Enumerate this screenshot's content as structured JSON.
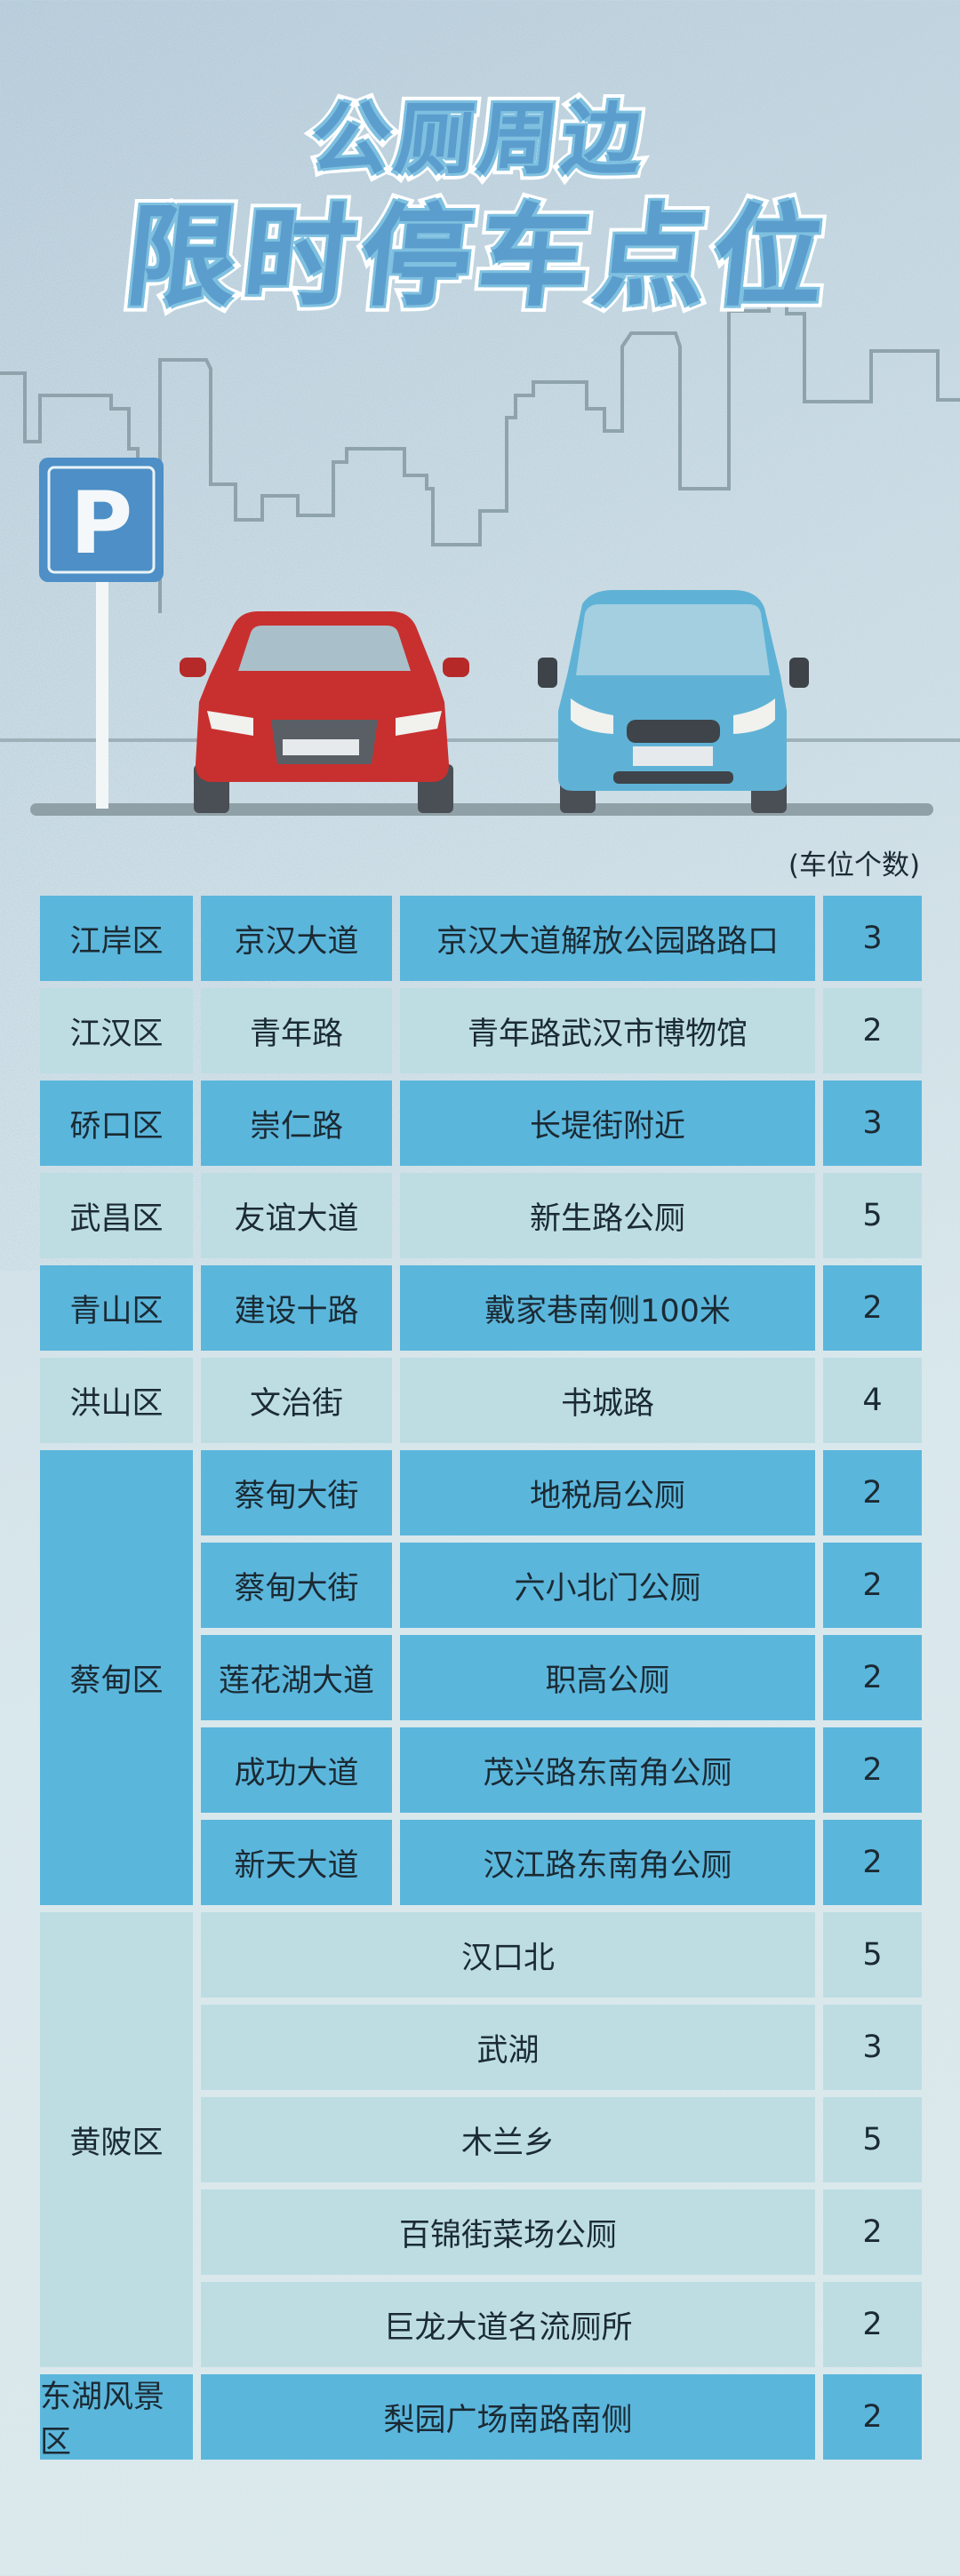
{
  "title": {
    "line1": "公厕周边",
    "line2": "限时停车点位"
  },
  "parking_sign": {
    "letter": "P"
  },
  "unit_note": "(车位个数)",
  "colors": {
    "dark_row": "#5bb6dc",
    "light_row": "#bddde3",
    "title": "#5b9dcc",
    "red_car": "#c8302f",
    "blue_car": "#5fb2d6"
  },
  "table": {
    "groups": [
      {
        "district": "江岸区",
        "shade": "dark",
        "entries": [
          {
            "road": "京汉大道",
            "location": "京汉大道解放公园路路口",
            "count": "3"
          }
        ]
      },
      {
        "district": "江汉区",
        "shade": "light",
        "entries": [
          {
            "road": "青年路",
            "location": "青年路武汉市博物馆",
            "count": "2"
          }
        ]
      },
      {
        "district": "硚口区",
        "shade": "dark",
        "entries": [
          {
            "road": "崇仁路",
            "location": "长堤街附近",
            "count": "3"
          }
        ]
      },
      {
        "district": "武昌区",
        "shade": "light",
        "entries": [
          {
            "road": "友谊大道",
            "location": "新生路公厕",
            "count": "5"
          }
        ]
      },
      {
        "district": "青山区",
        "shade": "dark",
        "entries": [
          {
            "road": "建设十路",
            "location": "戴家巷南侧100米",
            "count": "2"
          }
        ]
      },
      {
        "district": "洪山区",
        "shade": "light",
        "entries": [
          {
            "road": "文治街",
            "location": "书城路",
            "count": "4"
          }
        ]
      },
      {
        "district": "蔡甸区",
        "shade": "dark",
        "entries": [
          {
            "road": "蔡甸大街",
            "location": "地税局公厕",
            "count": "2"
          },
          {
            "road": "蔡甸大街",
            "location": "六小北门公厕",
            "count": "2"
          },
          {
            "road": "莲花湖大道",
            "location": "职高公厕",
            "count": "2"
          },
          {
            "road": "成功大道",
            "location": "茂兴路东南角公厕",
            "count": "2"
          },
          {
            "road": "新天大道",
            "location": "汉江路东南角公厕",
            "count": "2"
          }
        ]
      },
      {
        "district": "黄陂区",
        "shade": "light",
        "entries": [
          {
            "road": null,
            "location": "汉口北",
            "count": "5"
          },
          {
            "road": null,
            "location": "武湖",
            "count": "3"
          },
          {
            "road": null,
            "location": "木兰乡",
            "count": "5"
          },
          {
            "road": null,
            "location": "百锦街菜场公厕",
            "count": "2"
          },
          {
            "road": null,
            "location": "巨龙大道名流厕所",
            "count": "2"
          }
        ]
      },
      {
        "district": "东湖风景区",
        "shade": "dark",
        "entries": [
          {
            "road": null,
            "location": "梨园广场南路南侧",
            "count": "2"
          }
        ]
      }
    ]
  }
}
